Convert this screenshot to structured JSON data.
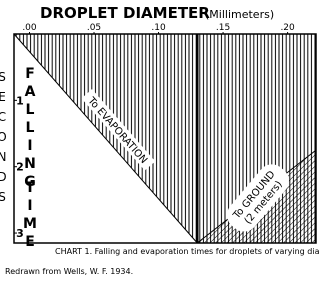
{
  "chart_data": {
    "type": "line",
    "title": "DROPLET DIAMETER",
    "x_unit": "(Millimeters)",
    "y_label": "SECONDS",
    "inner_label": [
      "FALLING",
      "TIME"
    ],
    "xlim": [
      -0.012,
      0.222
    ],
    "ylim": [
      0,
      3.15
    ],
    "xticks": [
      {
        "value": 0,
        "label": ".00"
      },
      {
        "value": 0.05,
        "label": ".05"
      },
      {
        "value": 0.1,
        "label": ".10"
      },
      {
        "value": 0.15,
        "label": ".15"
      },
      {
        "value": 0.2,
        "label": ".20"
      }
    ],
    "yticks": [
      1,
      2,
      3
    ],
    "series": [
      {
        "name": "To EVAPORATION",
        "x": [
          -0.012,
          0.13
        ],
        "values": [
          0,
          3.15
        ],
        "color": "#000000"
      },
      {
        "name": [
          "To GROUND",
          "(2 meters)"
        ],
        "x": [
          0.13,
          0.222
        ],
        "values": [
          3.15,
          1.75
        ],
        "color": "#000000"
      }
    ],
    "divider": 0.13,
    "caption": "CHART 1. Falling and evaporation times for droplets of varying diameter.",
    "source": "Redrawn from Wells, W. F. 1934."
  }
}
